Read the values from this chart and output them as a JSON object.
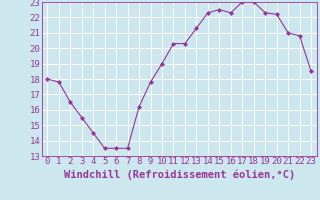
{
  "x": [
    0,
    1,
    2,
    3,
    4,
    5,
    6,
    7,
    8,
    9,
    10,
    11,
    12,
    13,
    14,
    15,
    16,
    17,
    18,
    19,
    20,
    21,
    22,
    23
  ],
  "y": [
    18.0,
    17.8,
    16.5,
    15.5,
    14.5,
    13.5,
    13.5,
    13.5,
    16.2,
    17.8,
    19.0,
    20.3,
    20.3,
    21.3,
    22.3,
    22.5,
    22.3,
    23.0,
    23.0,
    22.3,
    22.2,
    21.0,
    20.8,
    18.5
  ],
  "xlim": [
    -0.5,
    23.5
  ],
  "ylim": [
    13,
    23
  ],
  "yticks": [
    13,
    14,
    15,
    16,
    17,
    18,
    19,
    20,
    21,
    22,
    23
  ],
  "xticks": [
    0,
    1,
    2,
    3,
    4,
    5,
    6,
    7,
    8,
    9,
    10,
    11,
    12,
    13,
    14,
    15,
    16,
    17,
    18,
    19,
    20,
    21,
    22,
    23
  ],
  "xlabel": "Windchill (Refroidissement éolien,°C)",
  "line_color": "#993399",
  "marker": "D",
  "marker_size": 2,
  "bg_color": "#cce8ee",
  "grid_color": "#ffffff",
  "tick_label_size": 6.5,
  "xlabel_size": 7.5
}
